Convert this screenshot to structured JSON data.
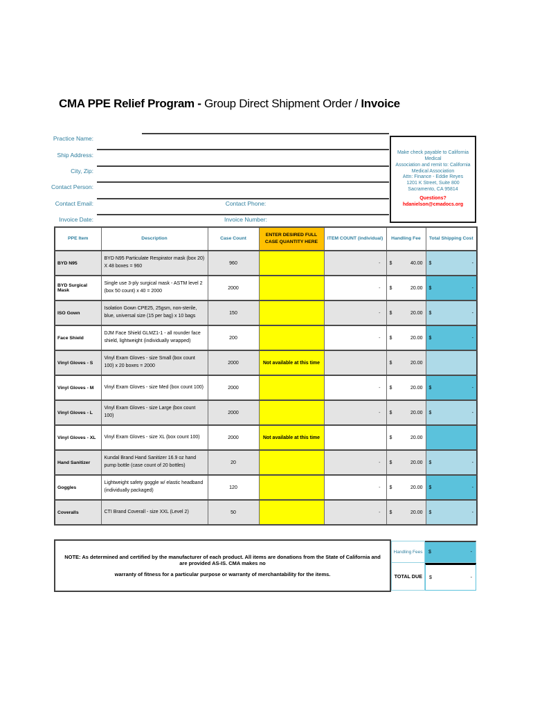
{
  "title": {
    "part1": "CMA PPE Relief Program - ",
    "part2": "Group Direct Shipment Order / ",
    "part3": "Invoice"
  },
  "form": {
    "fields": [
      "Practice Name:",
      "Ship Address:",
      "City, Zip:",
      "Contact Person:",
      "Contact Email:",
      "Invoice Date:"
    ],
    "inline_labels": {
      "phone": "Contact Phone:",
      "invoice_number": "Invoice Number:"
    }
  },
  "remit_box": {
    "lines": [
      "Make check payable to California Medical",
      "Association and remit to: California",
      "Medical Association",
      "Attn: Finance - Eddie Reyes",
      "1201 K Street, Suite 800",
      "Sacramento, CA 95814"
    ],
    "question_line": "Questions? hdanielson@cmadocs.org"
  },
  "table": {
    "headers": [
      "PPE Item",
      "Description",
      "Case Count",
      "ENTER DESIRED FULL CASE QUANTITY HERE",
      "ITEM COUNT (individual)",
      "Handling Fee",
      "Total Shipping Cost"
    ],
    "rows": [
      {
        "item": "BYD N95",
        "description": "BYD N95 Particulate Respirator mask (box 20) X 48 boxes = 960",
        "case_count": "960",
        "quantity": "",
        "item_count": "-",
        "fee_currency": "$",
        "fee": "40.00",
        "ship_currency": "$",
        "ship": "-"
      },
      {
        "item": "BYD Surgical Mask",
        "description": "Single use 3-ply surgical mask - ASTM level 2 (box 50 count) x 40 = 2000",
        "case_count": "2000",
        "quantity": "",
        "item_count": "-",
        "fee_currency": "$",
        "fee": "20.00",
        "ship_currency": "$",
        "ship": "-"
      },
      {
        "item": "ISO Gown",
        "description": "Isolation Gown CPE25, 25gsm, non-sterile, blue, universal size (15 per bag) x 10 bags",
        "case_count": "150",
        "quantity": "",
        "item_count": "-",
        "fee_currency": "$",
        "fee": "20.00",
        "ship_currency": "$",
        "ship": "-"
      },
      {
        "item": "Face Shield",
        "description": "DJM Face Shield GLMZ1-1 - all rounder face shield, lightweight (individually wrapped)",
        "case_count": "200",
        "quantity": "",
        "item_count": "-",
        "fee_currency": "$",
        "fee": "20.00",
        "ship_currency": "$",
        "ship": "-"
      },
      {
        "item": "Vinyl Gloves - S",
        "description": "Vinyl Exam Gloves - size Small (box count 100) x 20 boxes = 2000",
        "case_count": "2000",
        "quantity": "Not available at this time",
        "item_count": "",
        "fee_currency": "$",
        "fee": "20.00",
        "ship_currency": "",
        "ship": ""
      },
      {
        "item": "Vinyl Gloves - M",
        "description": "Vinyl Exam Gloves - size Med (box count 100)",
        "case_count": "2000",
        "quantity": "",
        "item_count": "-",
        "fee_currency": "$",
        "fee": "20.00",
        "ship_currency": "$",
        "ship": "-"
      },
      {
        "item": "Vinyl Gloves - L",
        "description": "Vinyl Exam Gloves - size Large (box count 100)",
        "case_count": "2000",
        "quantity": "",
        "item_count": "-",
        "fee_currency": "$",
        "fee": "20.00",
        "ship_currency": "$",
        "ship": "-"
      },
      {
        "item": "Vinyl Gloves - XL",
        "description": "Vinyl Exam Gloves - size XL (box count 100)",
        "case_count": "2000",
        "quantity": "Not available at this time",
        "item_count": "",
        "fee_currency": "$",
        "fee": "20.00",
        "ship_currency": "",
        "ship": ""
      },
      {
        "item": "Hand Sanitizer",
        "description": "Kundal Brand Hand Sanitizer 16.9 oz hand pump bottle (case count of 20 bottles)",
        "case_count": "20",
        "quantity": "",
        "item_count": "-",
        "fee_currency": "$",
        "fee": "20.00",
        "ship_currency": "$",
        "ship": "-"
      },
      {
        "item": "Goggles",
        "description": "Lightweight safety goggle w/ elastic headband (individually packaged)",
        "case_count": "120",
        "quantity": "",
        "item_count": "-",
        "fee_currency": "$",
        "fee": "20.00",
        "ship_currency": "$",
        "ship": "-"
      },
      {
        "item": "Coveralls",
        "description": "CTI Brand Coverall - size XXL (Level 2)",
        "case_count": "50",
        "quantity": "",
        "item_count": "-",
        "fee_currency": "$",
        "fee": "20.00",
        "ship_currency": "$",
        "ship": "-"
      }
    ]
  },
  "note": {
    "line1": "NOTE: As determined and certified by the manufacturer of each product. All items are donations from the State of California and are provided AS-IS. CMA makes no",
    "line2": "warranty of fitness for a particular purpose or warranty of merchantability for the items."
  },
  "totals": {
    "handling_label": "Handling Fees",
    "handling_currency": "$",
    "handling_value": "-",
    "total_label": "TOTAL DUE",
    "total_currency": "$",
    "total_value": "-"
  },
  "colors": {
    "accent_teal": "#2E7E9E",
    "alert_red": "#FF0000",
    "quantity_yellow": "#FFFF00",
    "header_orange": "#FFC000",
    "row_gray": "#E4E4E4",
    "shipping_light_blue": "#AEDAE8",
    "shipping_dark_blue": "#5BC2DC",
    "border_dark": "#404040",
    "border_light_blue": "#92D2E2"
  }
}
